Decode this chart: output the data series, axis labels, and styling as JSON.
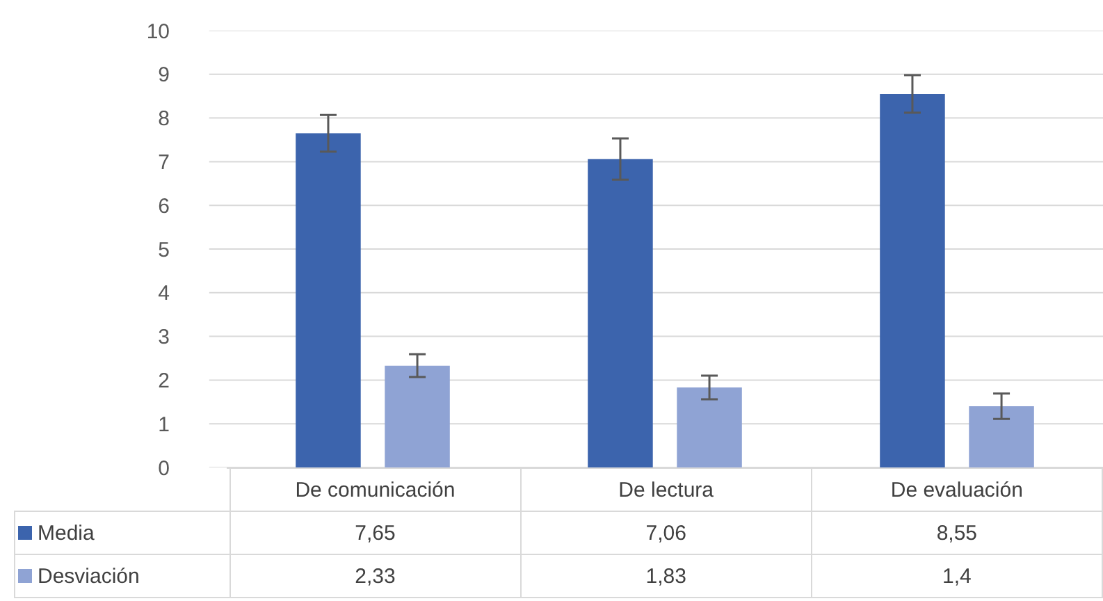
{
  "chart_data": {
    "type": "bar",
    "categories": [
      "De comunicación",
      "De lectura",
      "De evaluación"
    ],
    "series": [
      {
        "name": "Media",
        "color": "#3c64ad",
        "values": [
          7.65,
          7.06,
          8.55
        ],
        "errors": [
          0.42,
          0.47,
          0.43
        ],
        "value_labels": [
          "7,65",
          "7,06",
          "8,55"
        ]
      },
      {
        "name": "Desviación",
        "color": "#8fa3d4",
        "values": [
          2.33,
          1.83,
          1.4
        ],
        "errors": [
          0.26,
          0.27,
          0.29
        ],
        "value_labels": [
          "2,33",
          "1,83",
          "1,4"
        ]
      }
    ],
    "ylim": [
      0,
      10
    ],
    "yticks": [
      0,
      1,
      2,
      3,
      4,
      5,
      6,
      7,
      8,
      9,
      10
    ],
    "grid": "y",
    "legend": "bottom left"
  }
}
